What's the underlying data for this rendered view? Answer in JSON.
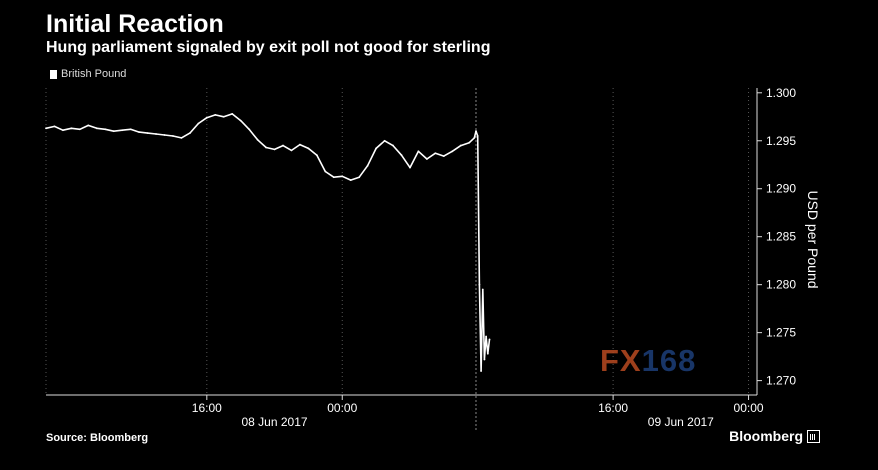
{
  "header": {
    "title": "Initial Reaction",
    "subtitle": "Hung parliament signaled by exit poll not good for sterling"
  },
  "footer": {
    "source": "Source: Bloomberg",
    "brand": "Bloomberg"
  },
  "watermark": {
    "part1": "FX",
    "part2": "168"
  },
  "colors": {
    "background": "#000000",
    "line": "#ffffff",
    "watermark_red": "#b94a22",
    "watermark_blue": "#1d3f7a"
  },
  "chart_data": {
    "type": "line",
    "title": "Initial Reaction",
    "subtitle": "Hung parliament signaled by exit poll not good for sterling",
    "ylabel": "USD per Pound",
    "ylim": [
      1.2685,
      1.3005
    ],
    "y_ticks": [
      "1.270",
      "1.275",
      "1.280",
      "1.285",
      "1.290",
      "1.295",
      "1.300"
    ],
    "y_tick_values": [
      1.27,
      1.275,
      1.28,
      1.285,
      1.29,
      1.295,
      1.3
    ],
    "x_unit": "hours from 00:00 08 Jun 2017",
    "xlim": [
      6.5,
      48.5
    ],
    "x_ticks": [
      {
        "label": "16:00",
        "x": 16
      },
      {
        "label": "00:00",
        "x": 24
      },
      {
        "label": "16:00",
        "x": 40
      },
      {
        "label": "00:00",
        "x": 48
      }
    ],
    "date_labels": [
      {
        "label": "08 Jun 2017",
        "x": 20
      },
      {
        "label": "09 Jun 2017",
        "x": 44
      }
    ],
    "exit_poll_marker_x": 31.9,
    "legend": {
      "entries": [
        "British Pound"
      ],
      "position": "top-left"
    },
    "grid": true,
    "series": [
      {
        "name": "British Pound",
        "x": [
          6.5,
          7.0,
          7.5,
          8.0,
          8.5,
          9.0,
          9.5,
          10.0,
          10.5,
          11.0,
          11.5,
          12.0,
          12.5,
          13.0,
          13.5,
          14.0,
          14.5,
          15.0,
          15.5,
          16.0,
          16.5,
          17.0,
          17.5,
          18.0,
          18.5,
          19.0,
          19.5,
          20.0,
          20.5,
          21.0,
          21.5,
          22.0,
          22.5,
          23.0,
          23.5,
          24.0,
          24.5,
          25.0,
          25.5,
          26.0,
          26.5,
          27.0,
          27.5,
          28.0,
          28.5,
          29.0,
          29.5,
          30.0,
          30.5,
          31.0,
          31.5,
          31.8,
          31.9,
          32.0,
          32.1,
          32.2,
          32.3,
          32.4,
          32.5,
          32.6,
          32.7
        ],
        "y": [
          1.2963,
          1.2965,
          1.2961,
          1.2963,
          1.2962,
          1.2966,
          1.2963,
          1.2962,
          1.296,
          1.2961,
          1.2962,
          1.2959,
          1.2958,
          1.2957,
          1.2956,
          1.2955,
          1.2953,
          1.2958,
          1.2968,
          1.2974,
          1.2977,
          1.2975,
          1.2978,
          1.2971,
          1.2962,
          1.2951,
          1.2943,
          1.2941,
          1.2945,
          1.294,
          1.2946,
          1.2942,
          1.2935,
          1.2918,
          1.2912,
          1.2913,
          1.2909,
          1.2912,
          1.2924,
          1.2942,
          1.295,
          1.2945,
          1.2935,
          1.2922,
          1.2939,
          1.2931,
          1.2937,
          1.2934,
          1.2939,
          1.2945,
          1.2948,
          1.2953,
          1.296,
          1.2955,
          1.28,
          1.271,
          1.2795,
          1.2722,
          1.2746,
          1.2728,
          1.2743
        ]
      }
    ]
  }
}
